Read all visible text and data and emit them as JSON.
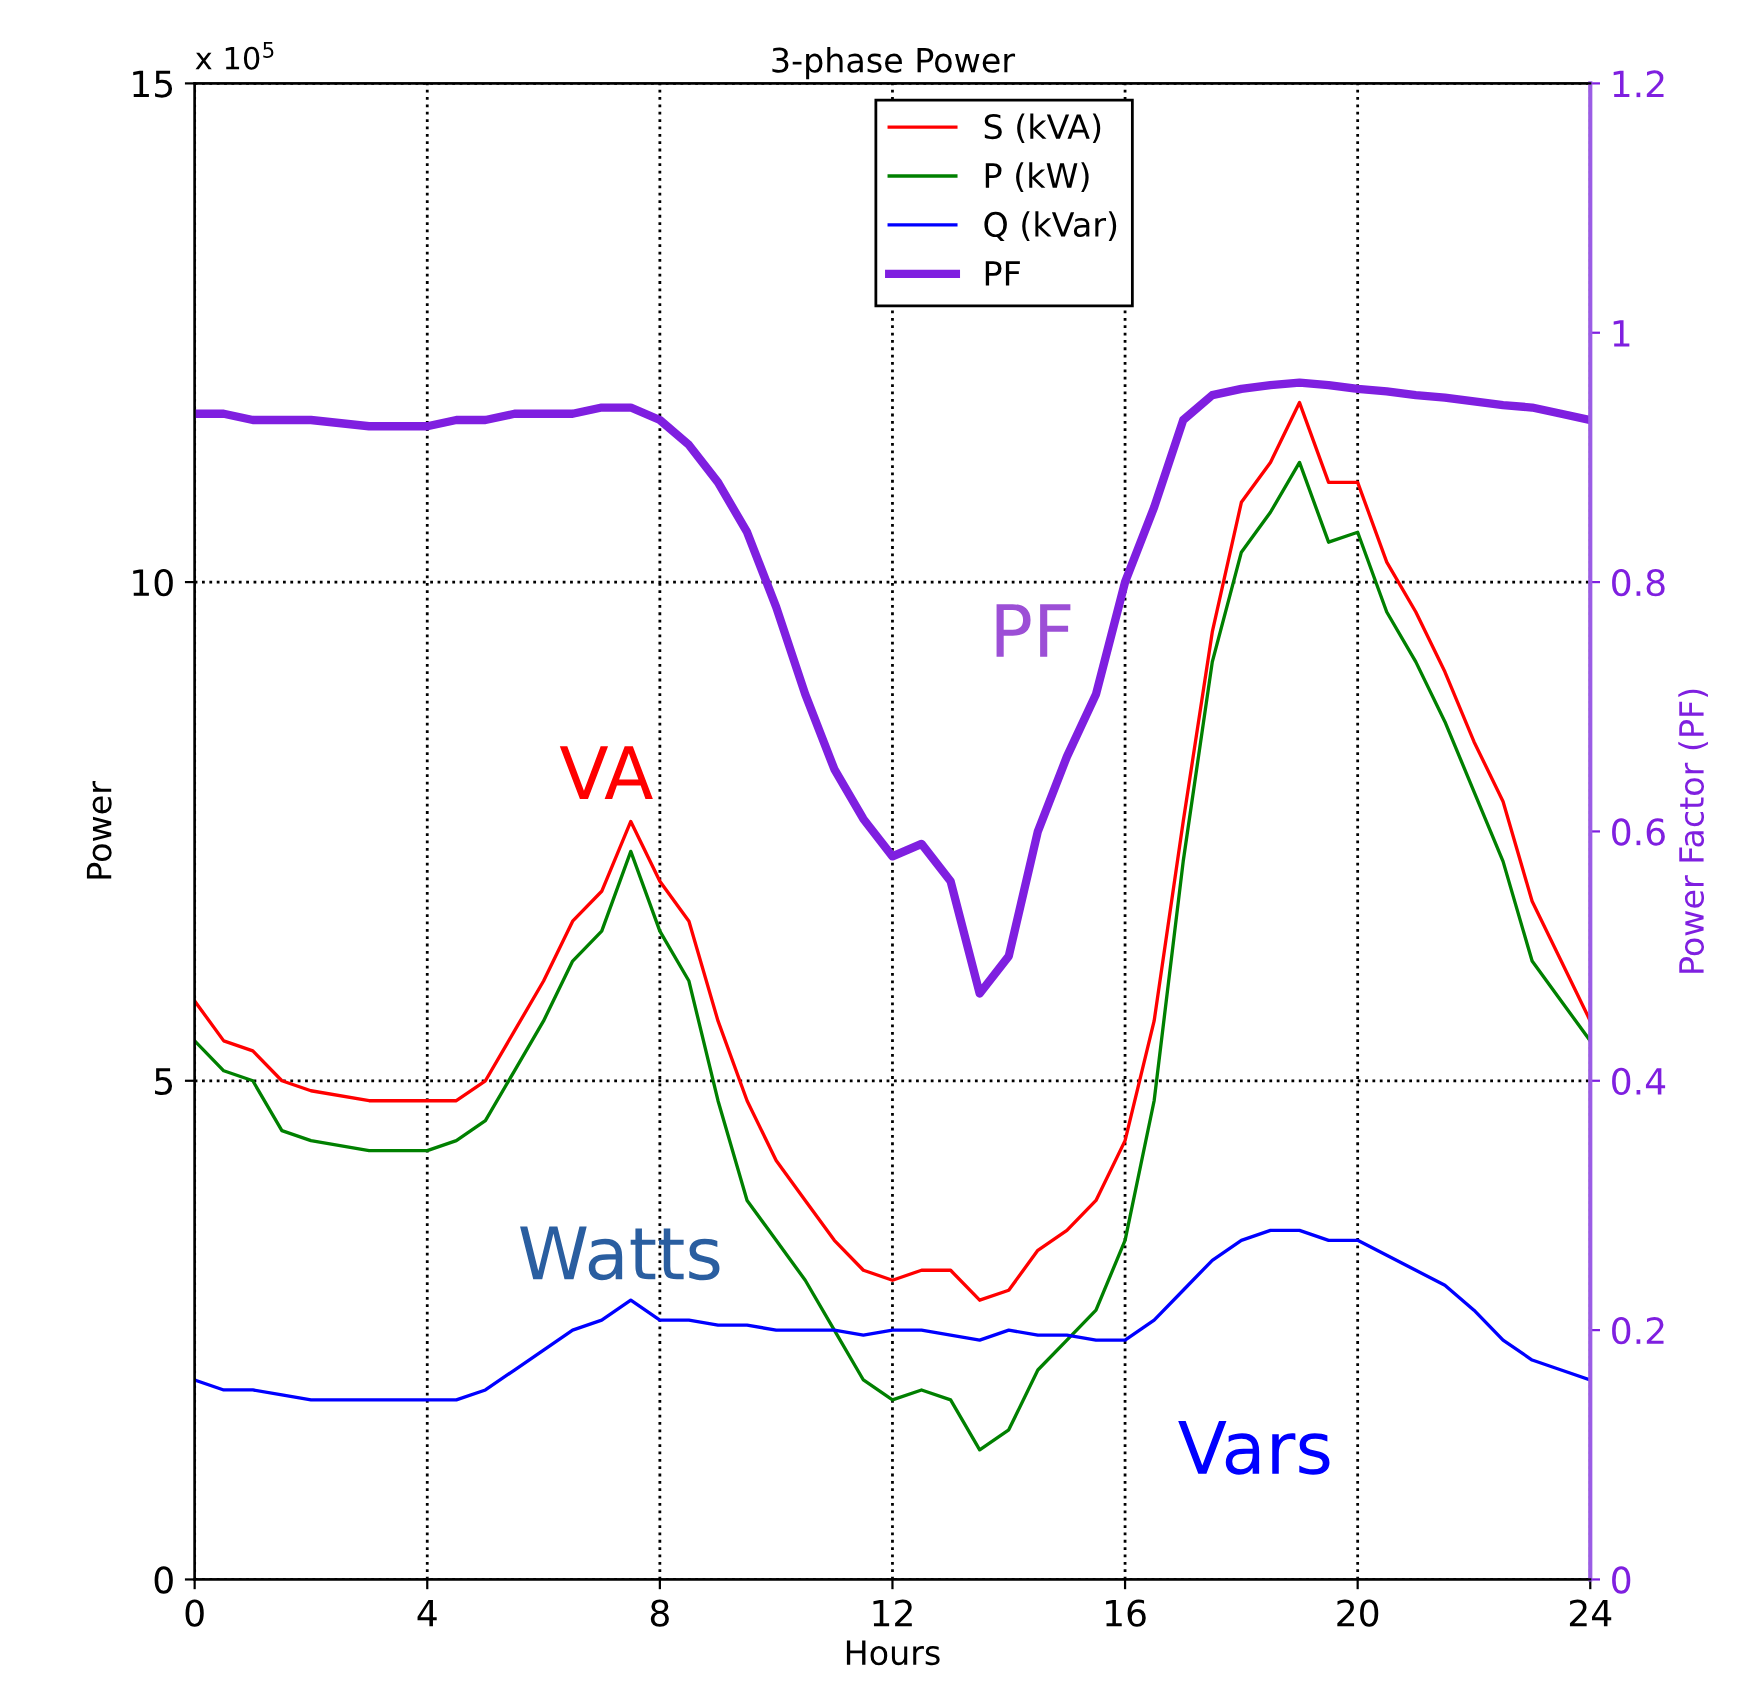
{
  "chart_data": {
    "type": "line",
    "title": "3-phase Power",
    "xlabel": "Hours",
    "ylabel": "Power",
    "y2label": "Power Factor (PF)",
    "x": [
      0,
      0.5,
      1,
      1.5,
      2,
      3,
      4,
      4.5,
      5,
      5.5,
      6,
      6.5,
      7,
      7.5,
      8,
      8.5,
      9,
      9.5,
      10,
      10.5,
      11,
      11.5,
      12,
      12.5,
      13,
      13.5,
      14,
      14.5,
      15,
      15.5,
      16,
      16.5,
      17,
      17.5,
      18,
      18.5,
      19,
      19.5,
      20,
      20.5,
      21,
      21.5,
      22,
      22.5,
      23,
      23.5,
      24
    ],
    "series": [
      {
        "name": "S (kVA)",
        "color": "#ff0000",
        "values": [
          5.8,
          5.4,
          5.3,
          5,
          4.9,
          4.8,
          4.8,
          4.8,
          5,
          5.5,
          6,
          6.6,
          6.9,
          7.6,
          7,
          6.6,
          5.6,
          4.8,
          4.2,
          3.8,
          3.4,
          3.1,
          3,
          3.1,
          3.1,
          2.8,
          2.9,
          3.3,
          3.5,
          3.8,
          4.4,
          5.6,
          7.6,
          9.5,
          10.8,
          11.2,
          11.8,
          11,
          11,
          10.2,
          9.7,
          9.1,
          8.4,
          7.8,
          6.8,
          6.2,
          5.6
        ]
      },
      {
        "name": "P (kW)",
        "color": "#008000",
        "values": [
          5.4,
          5.1,
          5,
          4.5,
          4.4,
          4.3,
          4.3,
          4.4,
          4.6,
          5.1,
          5.6,
          6.2,
          6.5,
          7.3,
          6.5,
          6,
          4.8,
          3.8,
          3.4,
          3,
          2.5,
          2,
          1.8,
          1.9,
          1.8,
          1.3,
          1.5,
          2.1,
          2.4,
          2.7,
          3.4,
          4.8,
          7.2,
          9.2,
          10.3,
          10.7,
          11.2,
          10.4,
          10.5,
          9.7,
          9.2,
          8.6,
          7.9,
          7.2,
          6.2,
          5.8,
          5.4
        ]
      },
      {
        "name": "Q (kVar)",
        "color": "#0000ff",
        "values": [
          2,
          1.9,
          1.9,
          1.85,
          1.8,
          1.8,
          1.8,
          1.8,
          1.9,
          2.1,
          2.3,
          2.5,
          2.6,
          2.8,
          2.6,
          2.6,
          2.55,
          2.55,
          2.5,
          2.5,
          2.5,
          2.45,
          2.5,
          2.5,
          2.45,
          2.4,
          2.5,
          2.45,
          2.45,
          2.4,
          2.4,
          2.6,
          2.9,
          3.2,
          3.4,
          3.5,
          3.5,
          3.4,
          3.4,
          3.25,
          3.1,
          2.95,
          2.7,
          2.4,
          2.2,
          2.1,
          2
        ]
      },
      {
        "name": "PF",
        "color": "#7f1fe0",
        "axis": "y2",
        "values": [
          0.935,
          0.935,
          0.93,
          0.93,
          0.93,
          0.925,
          0.925,
          0.93,
          0.93,
          0.935,
          0.935,
          0.935,
          0.94,
          0.94,
          0.93,
          0.91,
          0.88,
          0.84,
          0.78,
          0.71,
          0.65,
          0.61,
          0.58,
          0.59,
          0.56,
          0.47,
          0.5,
          0.6,
          0.66,
          0.71,
          0.8,
          0.86,
          0.93,
          0.95,
          0.955,
          0.958,
          0.96,
          0.958,
          0.955,
          0.953,
          0.95,
          0.948,
          0.945,
          0.942,
          0.94,
          0.935,
          0.93
        ]
      }
    ],
    "xlim": [
      0,
      24
    ],
    "xticks": [
      0,
      4,
      8,
      12,
      16,
      20,
      24
    ],
    "ylim": [
      0,
      15
    ],
    "yticks": [
      0,
      5,
      10,
      15
    ],
    "y2lim": [
      0,
      1.2
    ],
    "y2ticks": [
      0,
      0.2,
      0.4,
      0.6,
      0.8,
      1,
      1.2
    ],
    "annotations": [
      "x 10$^{5}$",
      "VA",
      "Watts",
      "Vars",
      "PF"
    ],
    "grid": true,
    "legend": "top",
    "line_style": "solid",
    "marker": "none"
  }
}
